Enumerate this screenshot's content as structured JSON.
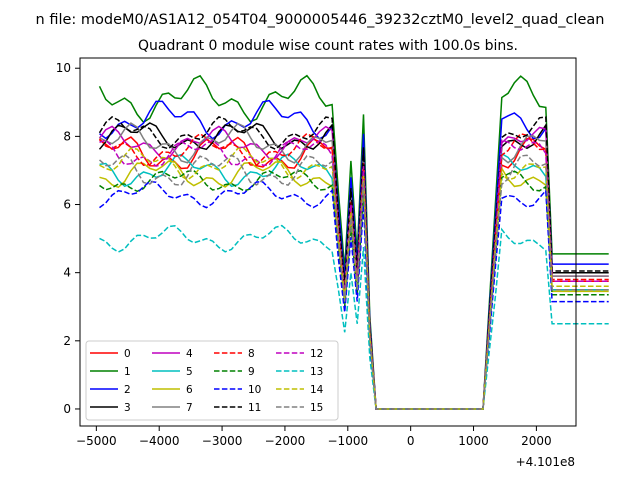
{
  "chart_data": {
    "type": "line",
    "suptitle": "n file: modeM0/AS1A12_054T04_9000005446_39232cztM0_level2_quad_clean",
    "title": "Quadrant 0 module wise count rates with 100.0s bins.",
    "xlabel": "",
    "ylabel": "",
    "x_offset_label": "+4.101e8",
    "xlim": [
      -5260,
      2630
    ],
    "ylim": [
      -0.5,
      10.3
    ],
    "x_ticks": [
      -5000,
      -4000,
      -3000,
      -2000,
      -1000,
      0,
      1000,
      2000
    ],
    "x_tick_labels": [
      "−5000",
      "−4000",
      "−3000",
      "−2000",
      "−1000",
      "0",
      "1000",
      "2000"
    ],
    "y_ticks": [
      0,
      2,
      4,
      6,
      8,
      10
    ],
    "y_tick_labels": [
      "0",
      "2",
      "4",
      "6",
      "8",
      "10"
    ],
    "grid": false,
    "legend_position": "lower-left",
    "segments": [
      {
        "start": -4950,
        "step": 100,
        "count": 38
      },
      {
        "start": -1150,
        "step": 100,
        "count": 35
      },
      {
        "start": 2350,
        "step": 100,
        "count": 9
      }
    ],
    "series": [
      {
        "name": "0",
        "color": "#ff0000",
        "style": "solid",
        "base": 7.5,
        "amp": 0.6
      },
      {
        "name": "1",
        "color": "#008000",
        "style": "solid",
        "base": 9.1,
        "amp": 0.7
      },
      {
        "name": "2",
        "color": "#0000ff",
        "style": "solid",
        "base": 8.5,
        "amp": 0.6
      },
      {
        "name": "3",
        "color": "#000000",
        "style": "solid",
        "base": 8.0,
        "amp": 0.5
      },
      {
        "name": "4",
        "color": "#bf00bf",
        "style": "solid",
        "base": 7.8,
        "amp": 0.5
      },
      {
        "name": "5",
        "color": "#00bfbf",
        "style": "solid",
        "base": 7.0,
        "amp": 0.5
      },
      {
        "name": "6",
        "color": "#bfbf00",
        "style": "solid",
        "base": 6.9,
        "amp": 0.5
      },
      {
        "name": "7",
        "color": "#808080",
        "style": "solid",
        "base": 7.8,
        "amp": 0.6
      },
      {
        "name": "8",
        "color": "#ff0000",
        "style": "dashed",
        "base": 7.6,
        "amp": 0.5
      },
      {
        "name": "9",
        "color": "#008000",
        "style": "dashed",
        "base": 6.7,
        "amp": 0.4
      },
      {
        "name": "10",
        "color": "#0000ff",
        "style": "dashed",
        "base": 6.3,
        "amp": 0.4
      },
      {
        "name": "11",
        "color": "#000000",
        "style": "dashed",
        "base": 8.1,
        "amp": 0.5
      },
      {
        "name": "12",
        "color": "#bf00bf",
        "style": "dashed",
        "base": 7.5,
        "amp": 0.5
      },
      {
        "name": "13",
        "color": "#00bfbf",
        "style": "dashed",
        "base": 5.0,
        "amp": 0.4
      },
      {
        "name": "14",
        "color": "#bfbf00",
        "style": "dashed",
        "base": 7.2,
        "amp": 0.5
      },
      {
        "name": "15",
        "color": "#808080",
        "style": "dashed",
        "base": 7.0,
        "amp": 0.6
      }
    ]
  }
}
